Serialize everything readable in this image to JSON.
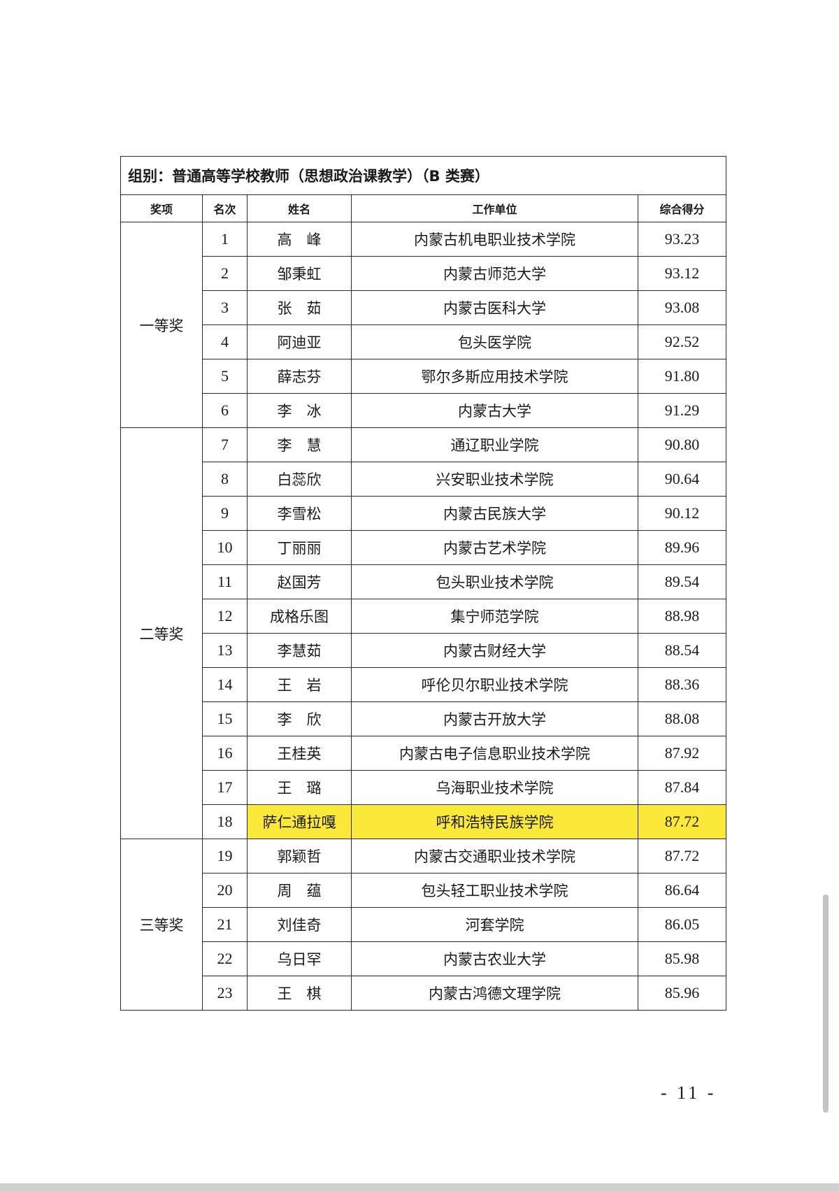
{
  "title": "组别：普通高等学校教师（思想政治课教学）（B 类赛）",
  "headers": [
    "奖项",
    "名次",
    "姓名",
    "工作单位",
    "综合得分"
  ],
  "groups": [
    {
      "award": "一等奖",
      "rows": [
        {
          "rank": "1",
          "name": "高　峰",
          "unit": "内蒙古机电职业技术学院",
          "score": "93.23"
        },
        {
          "rank": "2",
          "name": "邹秉虹",
          "unit": "内蒙古师范大学",
          "score": "93.12"
        },
        {
          "rank": "3",
          "name": "张　茹",
          "unit": "内蒙古医科大学",
          "score": "93.08"
        },
        {
          "rank": "4",
          "name": "阿迪亚",
          "unit": "包头医学院",
          "score": "92.52"
        },
        {
          "rank": "5",
          "name": "薛志芬",
          "unit": "鄂尔多斯应用技术学院",
          "score": "91.80"
        },
        {
          "rank": "6",
          "name": "李　冰",
          "unit": "内蒙古大学",
          "score": "91.29"
        }
      ]
    },
    {
      "award": "二等奖",
      "rows": [
        {
          "rank": "7",
          "name": "李　慧",
          "unit": "通辽职业学院",
          "score": "90.80"
        },
        {
          "rank": "8",
          "name": "白蕊欣",
          "unit": "兴安职业技术学院",
          "score": "90.64"
        },
        {
          "rank": "9",
          "name": "李雪松",
          "unit": "内蒙古民族大学",
          "score": "90.12"
        },
        {
          "rank": "10",
          "name": "丁丽丽",
          "unit": "内蒙古艺术学院",
          "score": "89.96"
        },
        {
          "rank": "11",
          "name": "赵国芳",
          "unit": "包头职业技术学院",
          "score": "89.54"
        },
        {
          "rank": "12",
          "name": "成格乐图",
          "unit": "集宁师范学院",
          "score": "88.98"
        },
        {
          "rank": "13",
          "name": "李慧茹",
          "unit": "内蒙古财经大学",
          "score": "88.54"
        },
        {
          "rank": "14",
          "name": "王　岩",
          "unit": "呼伦贝尔职业技术学院",
          "score": "88.36"
        },
        {
          "rank": "15",
          "name": "李　欣",
          "unit": "内蒙古开放大学",
          "score": "88.08"
        },
        {
          "rank": "16",
          "name": "王桂英",
          "unit": "内蒙古电子信息职业技术学院",
          "score": "87.92"
        },
        {
          "rank": "17",
          "name": "王　璐",
          "unit": "乌海职业技术学院",
          "score": "87.84"
        },
        {
          "rank": "18",
          "name": "萨仁通拉嘎",
          "unit": "呼和浩特民族学院",
          "score": "87.72",
          "highlighted": true
        }
      ]
    },
    {
      "award": "三等奖",
      "rows": [
        {
          "rank": "19",
          "name": "郭颖哲",
          "unit": "内蒙古交通职业技术学院",
          "score": "87.72"
        },
        {
          "rank": "20",
          "name": "周　蕴",
          "unit": "包头轻工职业技术学院",
          "score": "86.64"
        },
        {
          "rank": "21",
          "name": "刘佳奇",
          "unit": "河套学院",
          "score": "86.05"
        },
        {
          "rank": "22",
          "name": "乌日罕",
          "unit": "内蒙古农业大学",
          "score": "85.98"
        },
        {
          "rank": "23",
          "name": "王　棋",
          "unit": "内蒙古鸿德文理学院",
          "score": "85.96"
        }
      ]
    }
  ],
  "page_number": "- 11 -",
  "colors": {
    "highlight": "#fbe93a",
    "scrollbar": "#c4c4c4"
  }
}
